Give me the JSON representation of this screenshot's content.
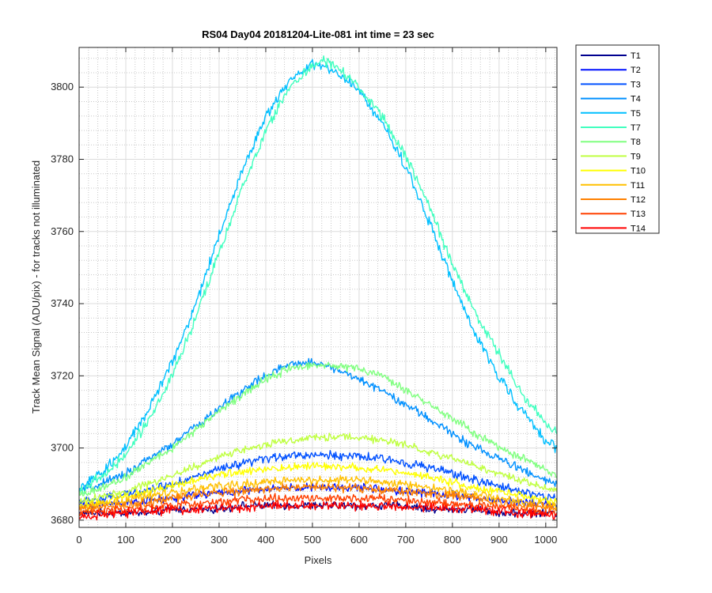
{
  "chart_data": {
    "type": "line",
    "title": "RS04 Day04 20181204-Lite-081 int time = 23 sec",
    "xlabel": "Pixels",
    "ylabel": "Track Mean Signal (ADU/pix) - for tracks not illuminated",
    "xlim": [
      0,
      1024
    ],
    "ylim": [
      3678,
      3811
    ],
    "xticks": [
      0,
      100,
      200,
      300,
      400,
      500,
      600,
      700,
      800,
      900,
      1000
    ],
    "yticks": [
      3680,
      3700,
      3720,
      3740,
      3760,
      3780,
      3800
    ],
    "grid": "major and minor",
    "legend_position": "outside-right",
    "x": [
      0,
      50,
      100,
      150,
      200,
      250,
      300,
      350,
      400,
      450,
      500,
      520,
      550,
      600,
      650,
      700,
      750,
      800,
      850,
      900,
      950,
      1000,
      1024
    ],
    "series": [
      {
        "name": "T1",
        "color": "#00008f",
        "values": [
          3682,
          3682,
          3682,
          3682,
          3683,
          3683,
          3683,
          3684,
          3684,
          3684,
          3684,
          3684,
          3684,
          3684,
          3684,
          3684,
          3683,
          3683,
          3683,
          3682,
          3682,
          3682,
          3682
        ]
      },
      {
        "name": "T2",
        "color": "#0010ff",
        "values": [
          3684,
          3684.5,
          3685,
          3685.5,
          3686,
          3687,
          3687.5,
          3688,
          3688.5,
          3689,
          3689,
          3689,
          3689,
          3689,
          3688.5,
          3688,
          3687.5,
          3687,
          3686,
          3685.5,
          3685,
          3684.5,
          3684
        ]
      },
      {
        "name": "T3",
        "color": "#0050ff",
        "values": [
          3685,
          3686,
          3687,
          3688.5,
          3690,
          3692,
          3694,
          3695.5,
          3697,
          3698,
          3698,
          3698,
          3698,
          3697.5,
          3697,
          3696,
          3694.5,
          3693,
          3691,
          3689.5,
          3688,
          3686.5,
          3686
        ]
      },
      {
        "name": "T4",
        "color": "#0090ff",
        "values": [
          3688,
          3690,
          3693,
          3697,
          3701,
          3706,
          3711,
          3716,
          3720,
          3723,
          3724,
          3723,
          3722,
          3719,
          3716,
          3712,
          3708,
          3704,
          3700,
          3697,
          3694,
          3691,
          3690
        ]
      },
      {
        "name": "T5",
        "color": "#00bfff",
        "values": [
          3689,
          3693,
          3700,
          3711,
          3724,
          3740,
          3759,
          3777,
          3792,
          3802,
          3806,
          3806,
          3804,
          3799,
          3790,
          3778,
          3763,
          3746,
          3731,
          3720,
          3710,
          3702,
          3700
        ]
      },
      {
        "name": "T7",
        "color": "#40ffbf",
        "values": [
          3688,
          3692,
          3698,
          3708,
          3720,
          3736,
          3754,
          3772,
          3788,
          3800,
          3806,
          3807,
          3806,
          3800,
          3792,
          3781,
          3767,
          3751,
          3737,
          3726,
          3715,
          3707,
          3704
        ]
      },
      {
        "name": "T8",
        "color": "#80ff80",
        "values": [
          3687,
          3689,
          3692,
          3696,
          3700,
          3705,
          3710,
          3715,
          3719,
          3722,
          3723,
          3723,
          3723,
          3722,
          3720,
          3716,
          3712,
          3708,
          3704,
          3700,
          3697,
          3694,
          3692
        ]
      },
      {
        "name": "T9",
        "color": "#bfff40",
        "values": [
          3685,
          3686.5,
          3688,
          3690,
          3692.5,
          3695,
          3697.5,
          3699.5,
          3701,
          3702,
          3703,
          3703,
          3703,
          3703,
          3702,
          3701,
          3699,
          3697,
          3695,
          3693,
          3691,
          3689,
          3688
        ]
      },
      {
        "name": "T10",
        "color": "#ffff00",
        "values": [
          3684,
          3685,
          3686.5,
          3688,
          3689.5,
          3691,
          3692.5,
          3693.5,
          3694,
          3694.5,
          3695,
          3695,
          3695,
          3694.5,
          3694,
          3693,
          3692,
          3690.5,
          3689,
          3688,
          3686.5,
          3685.5,
          3685
        ]
      },
      {
        "name": "T11",
        "color": "#ffc000",
        "values": [
          3683.5,
          3684.5,
          3685.5,
          3686.5,
          3687.5,
          3688.5,
          3689.5,
          3690,
          3690.5,
          3691,
          3691,
          3691,
          3691,
          3691,
          3690.5,
          3690,
          3689,
          3688,
          3687,
          3686,
          3685,
          3684.5,
          3684
        ]
      },
      {
        "name": "T12",
        "color": "#ff8000",
        "values": [
          3683,
          3683.5,
          3684,
          3685,
          3686,
          3687,
          3687.5,
          3688,
          3688.5,
          3689,
          3689,
          3689,
          3689,
          3689,
          3688.5,
          3688,
          3687.5,
          3687,
          3686,
          3685,
          3684,
          3683.5,
          3683
        ]
      },
      {
        "name": "T13",
        "color": "#ff4000",
        "values": [
          3682,
          3682.5,
          3683,
          3683.5,
          3684,
          3684.5,
          3685,
          3685.5,
          3686,
          3686,
          3686,
          3686,
          3686,
          3686,
          3686,
          3685.5,
          3685,
          3684.5,
          3684,
          3683.5,
          3683,
          3682.5,
          3682
        ]
      },
      {
        "name": "T14",
        "color": "#ff0000",
        "values": [
          3681,
          3681.5,
          3682,
          3682.5,
          3683,
          3683,
          3683.5,
          3683.5,
          3684,
          3684,
          3684,
          3684,
          3684,
          3684,
          3684,
          3683.5,
          3683.5,
          3683,
          3683,
          3682.5,
          3682,
          3681.5,
          3681
        ]
      }
    ]
  }
}
